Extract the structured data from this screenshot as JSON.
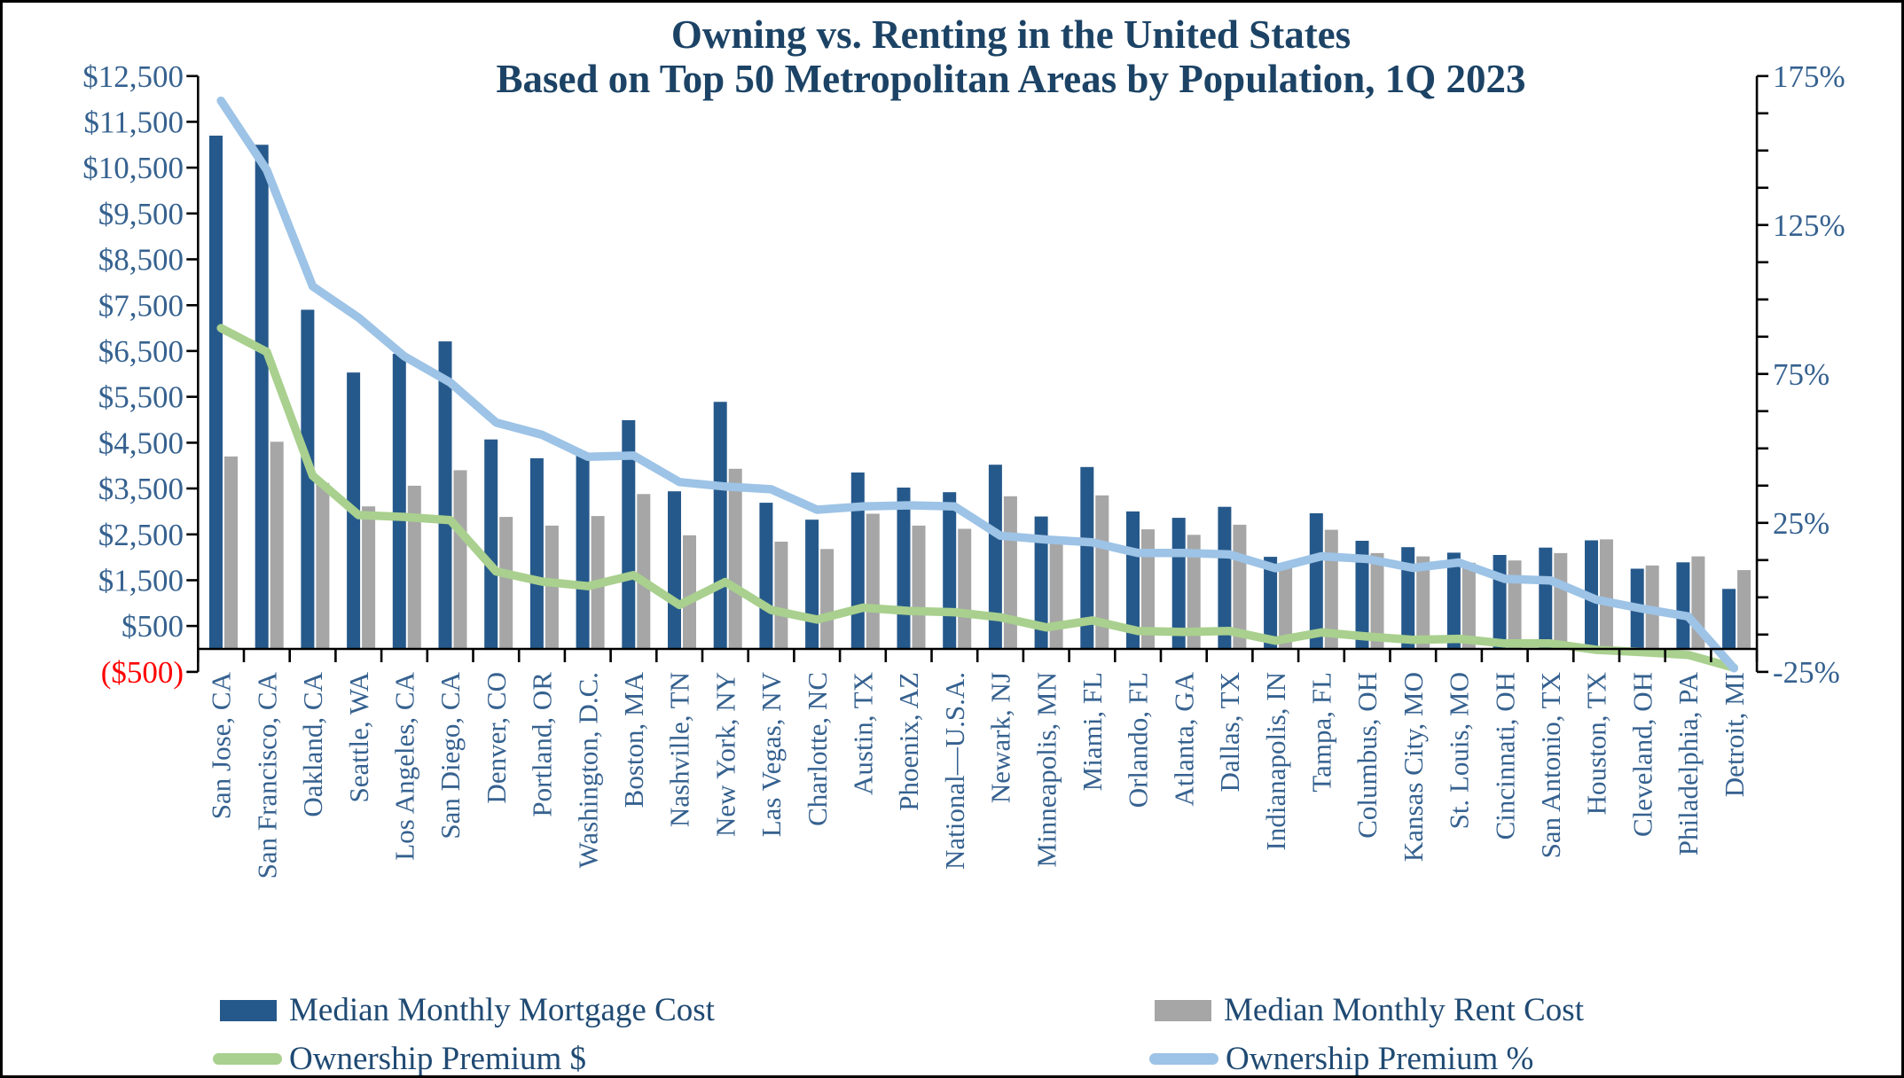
{
  "title": {
    "line1": "Owning vs. Renting in the United States",
    "line2": "Based on Top 50 Metropolitan Areas by Population, 1Q 2023"
  },
  "colors": {
    "mortgage_bar": "#26598B",
    "rent_bar": "#A6A6A6",
    "premium_dollar_line": "#A9D08E",
    "premium_pct_line": "#9DC3E6",
    "title_text": "#1C4365",
    "axis_text": "#35618F",
    "negative_dollar_label": "#FF0000",
    "axis_line": "#000000"
  },
  "legend": {
    "items": [
      {
        "label": "Median Monthly Mortgage Cost",
        "swatch": "bar",
        "color": "#26598B"
      },
      {
        "label": "Median Monthly Rent Cost",
        "swatch": "bar",
        "color": "#A6A6A6"
      },
      {
        "label": "Ownership Premium $",
        "swatch": "line",
        "color": "#A9D08E"
      },
      {
        "label": "Ownership Premium %",
        "swatch": "line",
        "color": "#9DC3E6"
      }
    ]
  },
  "chart_data": {
    "type": "bar",
    "subtype": "combo-bar-line",
    "title": "Owning vs. Renting in the United States",
    "subtitle": "Based on Top 50 Metropolitan Areas by Population, 1Q 2023",
    "grid": false,
    "legend_position": "bottom",
    "categories": [
      "San Jose, CA",
      "San Francisco, CA",
      "Oakland, CA",
      "Seattle, WA",
      "Los Angeles, CA",
      "San Diego, CA",
      "Denver, CO",
      "Portland, OR",
      "Washington, D.C.",
      "Boston, MA",
      "Nashville, TN",
      "New York, NY",
      "Las Vegas, NV",
      "Charlotte, NC",
      "Austin, TX",
      "Phoenix, AZ",
      "National—U.S.A.",
      "Newark, NJ",
      "Minneapolis, MN",
      "Miami, FL",
      "Orlando, FL",
      "Atlanta, GA",
      "Dallas, TX",
      "Indianapolis, IN",
      "Tampa, FL",
      "Columbus, OH",
      "Kansas City, MO",
      "St. Louis, MO",
      "Cincinnati, OH",
      "San Antonio, TX",
      "Houston, TX",
      "Cleveland, OH",
      "Philadelphia, PA",
      "Detroit, MI"
    ],
    "series": [
      {
        "name": "Median Monthly Mortgage Cost",
        "type": "bar",
        "axis": "left",
        "color": "#26598B",
        "values": [
          11200,
          11000,
          7400,
          6030,
          6440,
          6710,
          4570,
          4160,
          4270,
          4990,
          3440,
          5390,
          3190,
          2820,
          3850,
          3520,
          3420,
          4020,
          2890,
          3970,
          3000,
          2860,
          3100,
          2010,
          2960,
          2360,
          2220,
          2100,
          2050,
          2210,
          2370,
          1750,
          1890,
          1310
        ]
      },
      {
        "name": "Median Monthly Rent Cost",
        "type": "bar",
        "axis": "left",
        "color": "#A6A6A6",
        "values": [
          4200,
          4520,
          3620,
          3110,
          3560,
          3900,
          2880,
          2690,
          2900,
          3380,
          2480,
          3930,
          2340,
          2180,
          2950,
          2690,
          2620,
          3330,
          2420,
          3350,
          2610,
          2490,
          2710,
          1830,
          2600,
          2090,
          2020,
          1880,
          1930,
          2090,
          2390,
          1820,
          2020,
          1720
        ]
      },
      {
        "name": "Ownership Premium $",
        "type": "line",
        "axis": "left",
        "color": "#A9D08E",
        "values": [
          7000,
          6480,
          3780,
          2920,
          2880,
          2810,
          1690,
          1470,
          1370,
          1610,
          960,
          1460,
          850,
          640,
          900,
          830,
          800,
          690,
          470,
          620,
          390,
          370,
          390,
          180,
          360,
          270,
          200,
          220,
          120,
          120,
          -20,
          -70,
          -130,
          -410
        ]
      },
      {
        "name": "Ownership Premium %",
        "type": "line",
        "axis": "right",
        "color": "#9DC3E6",
        "values": [
          166.7,
          143.4,
          104.4,
          93.9,
          80.9,
          72.1,
          58.7,
          54.6,
          47.2,
          47.6,
          38.7,
          37.2,
          36.3,
          29.4,
          30.5,
          30.9,
          30.5,
          20.7,
          19.4,
          18.5,
          14.9,
          14.9,
          14.4,
          9.8,
          13.8,
          12.9,
          9.9,
          11.7,
          6.2,
          5.7,
          -0.8,
          -3.8,
          -6.4,
          -23.8
        ]
      }
    ],
    "left_axis": {
      "min": -500,
      "max": 12500,
      "tick_step": 1000,
      "tick_labels": [
        "$12,500",
        "$11,500",
        "$10,500",
        "$9,500",
        "$8,500",
        "$7,500",
        "$6,500",
        "$5,500",
        "$4,500",
        "$3,500",
        "$2,500",
        "$1,500",
        "$500",
        "($500)"
      ],
      "negative_label": "($500)",
      "negative_label_color": "#FF0000"
    },
    "right_axis": {
      "min": -25,
      "max": 175,
      "tick_step": 12.5,
      "label_step": 50,
      "tick_labels": [
        "175%",
        "125%",
        "75%",
        "25%",
        "-25%"
      ],
      "label_values": [
        175,
        125,
        75,
        25,
        -25
      ]
    }
  }
}
